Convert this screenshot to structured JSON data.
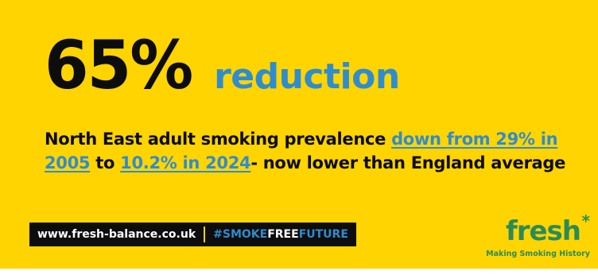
{
  "headline": {
    "stat": "65%",
    "label": "reduction"
  },
  "body": {
    "part1": "North East adult smoking prevalence ",
    "link1": "down from 29% in 2005",
    "part2": " to ",
    "link2": "10.2% in 2024",
    "part3": "- now lower than England average"
  },
  "footer": {
    "url": "www.fresh-balance.co.uk",
    "hashtag_a": "#SMOKE",
    "hashtag_b": "FREE",
    "hashtag_c": "FUTURE"
  },
  "logo": {
    "word": "fresh",
    "asterisk": "*",
    "tagline": "Making Smoking History"
  },
  "colors": {
    "background": "#ffd400",
    "text": "#0d0d0d",
    "accent_blue": "#2f8ccf",
    "logo_green": "#2a8b5a"
  }
}
